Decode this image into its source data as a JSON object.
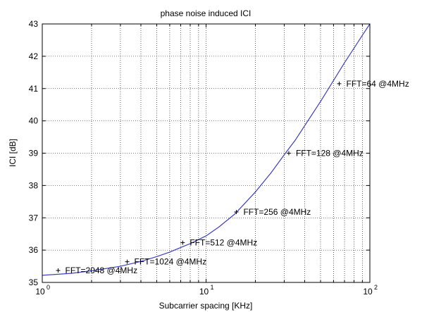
{
  "chart_data": {
    "type": "line",
    "title": "phase noise induced ICI",
    "xlabel": "Subcarrier spacing [KHz]",
    "ylabel": "ICI [dB]",
    "xscale": "log",
    "xlim": [
      1,
      100
    ],
    "ylim": [
      35,
      43
    ],
    "grid": true,
    "x_ticks": [
      {
        "mantissa": "10",
        "exp": "0",
        "value": 1
      },
      {
        "mantissa": "10",
        "exp": "1",
        "value": 10
      },
      {
        "mantissa": "10",
        "exp": "2",
        "value": 100
      }
    ],
    "y_ticks": [
      {
        "label": "35",
        "value": 35
      },
      {
        "label": "36",
        "value": 36
      },
      {
        "label": "37",
        "value": 37
      },
      {
        "label": "38",
        "value": 38
      },
      {
        "label": "39",
        "value": 39
      },
      {
        "label": "40",
        "value": 40
      },
      {
        "label": "41",
        "value": 41
      },
      {
        "label": "42",
        "value": 42
      },
      {
        "label": "43",
        "value": 43
      }
    ],
    "series": [
      {
        "color": "#3f3fbf",
        "x": [
          1,
          1.5,
          2,
          3,
          4,
          5,
          6,
          7,
          8,
          10,
          12,
          15,
          20,
          25,
          30,
          35,
          40,
          50,
          60,
          70,
          80,
          90,
          100
        ],
        "y": [
          35.22,
          35.28,
          35.36,
          35.5,
          35.65,
          35.8,
          35.94,
          36.08,
          36.2,
          36.44,
          36.72,
          37.12,
          37.8,
          38.4,
          38.95,
          39.4,
          39.85,
          40.6,
          41.25,
          41.8,
          42.25,
          42.65,
          43.0
        ]
      }
    ],
    "markers": [
      {
        "x": 1.25,
        "y": 35.37,
        "label": "FFT=2048 @4MHz"
      },
      {
        "x": 3.3,
        "y": 35.64,
        "label": "FFT=1024 @4MHz"
      },
      {
        "x": 7.2,
        "y": 36.23,
        "label": "FFT=512 @4MHz"
      },
      {
        "x": 15.3,
        "y": 37.18,
        "label": "FFT=256 @4MHz"
      },
      {
        "x": 32,
        "y": 39.0,
        "label": "FFT=128 @4MHz"
      },
      {
        "x": 65,
        "y": 41.15,
        "label": "FFT=64 @4MHz"
      }
    ],
    "colors": {
      "line": "#3f3fbf",
      "axes": "#000000",
      "grid": "#000000",
      "background": "#ffffff"
    }
  }
}
